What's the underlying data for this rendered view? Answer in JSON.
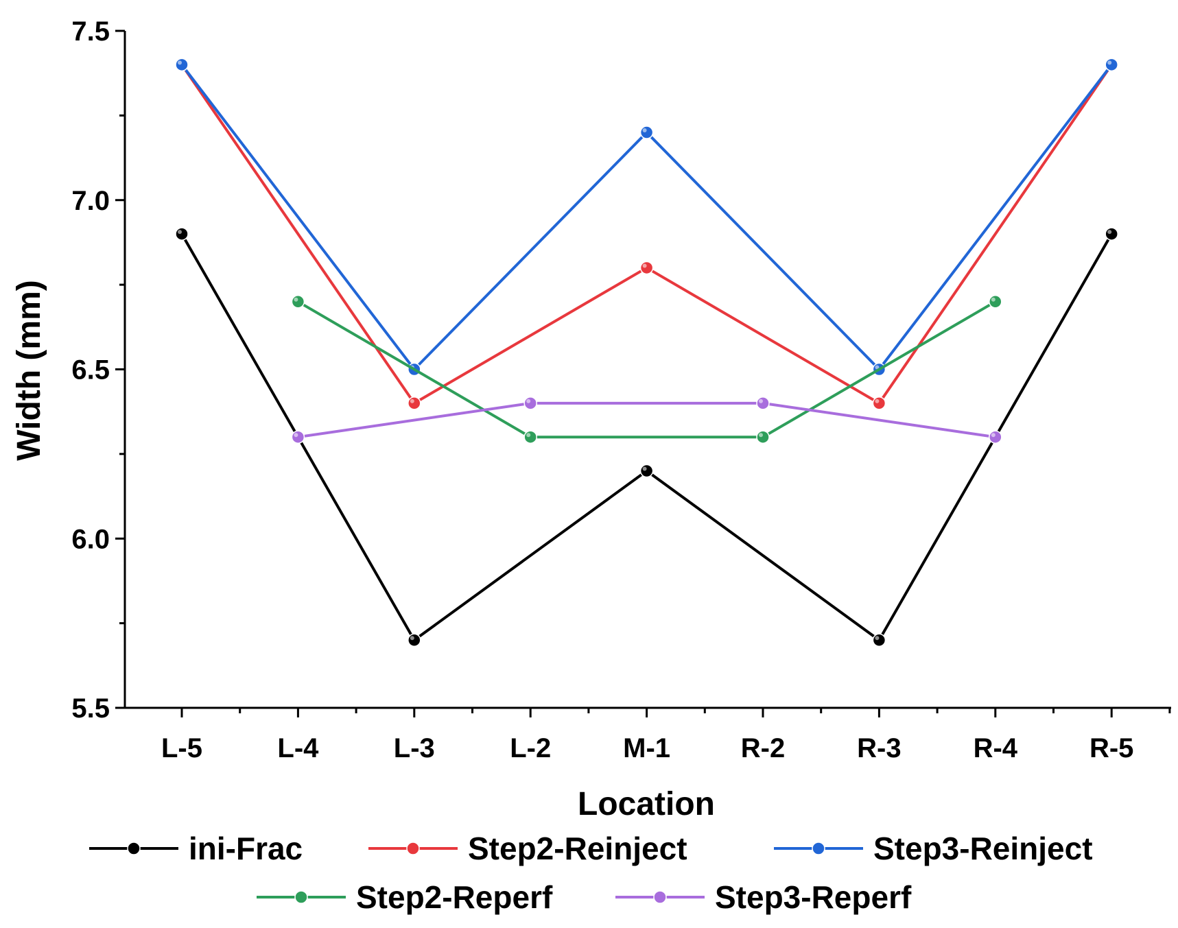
{
  "chart_data": {
    "type": "line",
    "title": "",
    "xlabel": "Location",
    "ylabel": "Width (mm)",
    "categories": [
      "L-5",
      "L-4",
      "L-3",
      "L-2",
      "M-1",
      "R-2",
      "R-3",
      "R-4",
      "R-5"
    ],
    "ylim": [
      5.5,
      7.5
    ],
    "yticks": [
      "5.5",
      "6.0",
      "6.5",
      "7.0",
      "7.5"
    ],
    "ytick_values": [
      5.5,
      6.0,
      6.5,
      7.0,
      7.5
    ],
    "grid": false,
    "legend_position": "bottom",
    "series": [
      {
        "name": "ini-Frac",
        "color": "#000000",
        "values": [
          6.9,
          null,
          5.7,
          null,
          6.2,
          null,
          5.7,
          null,
          6.9
        ]
      },
      {
        "name": "Step2-Reinject",
        "color": "#e8383d",
        "values": [
          7.4,
          null,
          6.4,
          null,
          6.8,
          null,
          6.4,
          null,
          7.4
        ]
      },
      {
        "name": "Step3-Reinject",
        "color": "#2166d6",
        "values": [
          7.4,
          null,
          6.5,
          null,
          7.2,
          null,
          6.5,
          null,
          7.4
        ]
      },
      {
        "name": "Step2-Reperf",
        "color": "#2e9e5a",
        "values": [
          null,
          6.7,
          null,
          6.3,
          null,
          6.3,
          null,
          6.7,
          null
        ]
      },
      {
        "name": "Step3-Reperf",
        "color": "#a86ddd",
        "values": [
          null,
          6.3,
          null,
          6.4,
          null,
          6.4,
          null,
          6.3,
          null
        ]
      }
    ]
  }
}
